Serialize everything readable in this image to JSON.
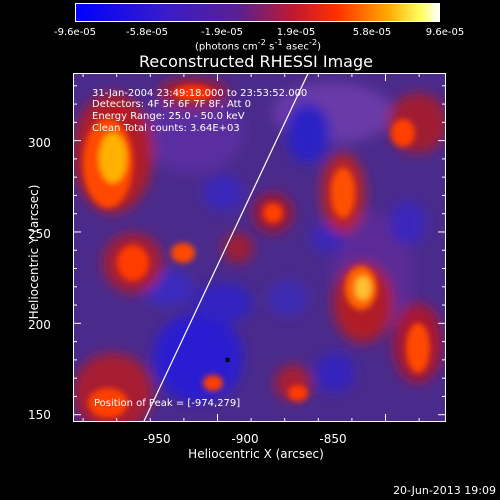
{
  "colorbar": {
    "ticks": [
      "-9.6e-05",
      "-5.8e-05",
      "-1.9e-05",
      "1.9e-05",
      "5.8e-05",
      "9.6e-05"
    ],
    "units_html": "(photons cm<sup>-2</sup> s<sup>-1</sup> asec<sup>-2</sup>)",
    "units_text": "(photons cm-2 s-1 asec-2)"
  },
  "chart_data": {
    "type": "heatmap",
    "title": "Reconstructed RHESSI Image",
    "xlabel": "Heliocentric X (arcsec)",
    "ylabel": "Heliocentric Y (arcsec)",
    "xlim": [
      -993,
      -882
    ],
    "ylim": [
      146,
      337
    ],
    "x_ticks": [
      -950,
      -900,
      -850
    ],
    "y_ticks": [
      150,
      200,
      250,
      300
    ],
    "clim": [
      -9.6e-05,
      9.6e-05
    ],
    "colormap": "blue-purple-red-yellow-white",
    "peak": [
      -974,
      279
    ],
    "limb_line": [
      [
        -972,
        146
      ],
      [
        -923,
        337
      ]
    ]
  },
  "annotations": {
    "time_range": "31-Jan-2004 23:49:18.000 to 23:53:52.000",
    "detectors": "Detectors: 4F 5F 6F 7F 8F, Att 0",
    "energy": "Energy Range: 25.0 - 50.0 keV",
    "clean": "Clean     Total counts: 3.64E+03",
    "peak_text": "Position of Peak = [-974,279]"
  },
  "footer": {
    "date": "20-Jun-2013 19:09"
  }
}
